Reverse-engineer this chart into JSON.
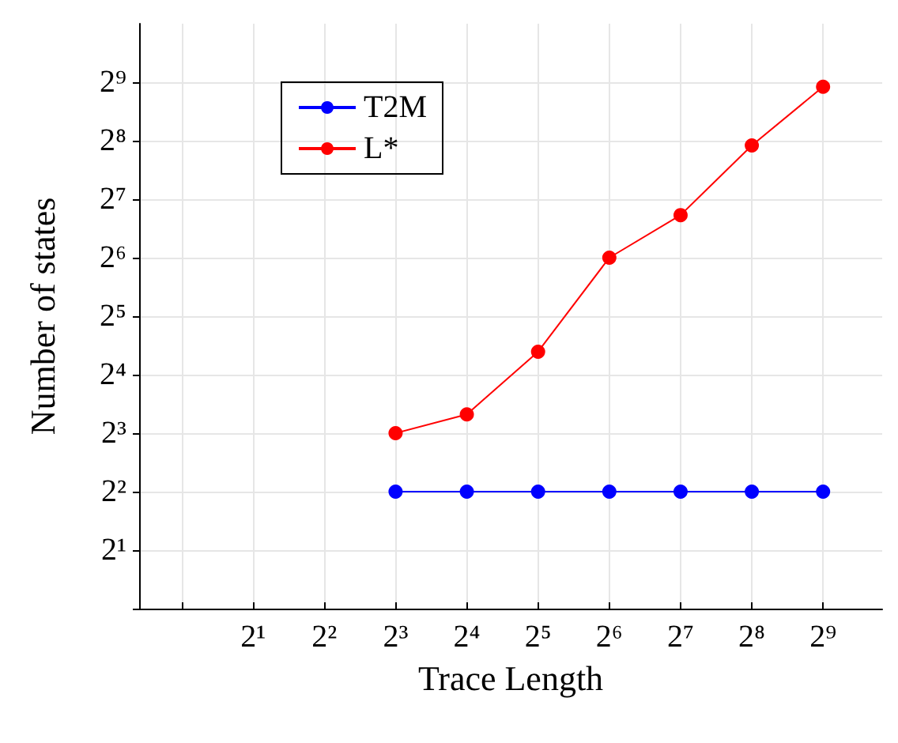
{
  "chart_data": {
    "type": "line",
    "xlabel": "Trace Length",
    "ylabel": "Number of states",
    "log": "xy",
    "grid": true,
    "legend": "top left",
    "marker": "circle",
    "line_style": "solid",
    "xlim": [
      0.66,
      910
    ],
    "ylim": [
      1,
      1024
    ],
    "xticks": [
      {
        "value": 1,
        "label": null
      },
      {
        "value": 2,
        "label": "2¹"
      },
      {
        "value": 4,
        "label": "2²"
      },
      {
        "value": 8,
        "label": "2³"
      },
      {
        "value": 16,
        "label": "2⁴"
      },
      {
        "value": 32,
        "label": "2⁵"
      },
      {
        "value": 64,
        "label": "2⁶"
      },
      {
        "value": 128,
        "label": "2⁷"
      },
      {
        "value": 256,
        "label": "2⁸"
      },
      {
        "value": 512,
        "label": "2⁹"
      }
    ],
    "yticks": [
      {
        "value": 1,
        "label": null
      },
      {
        "value": 2,
        "label": "2¹"
      },
      {
        "value": 4,
        "label": "2²"
      },
      {
        "value": 8,
        "label": "2³"
      },
      {
        "value": 16,
        "label": "2⁴"
      },
      {
        "value": 32,
        "label": "2⁵"
      },
      {
        "value": 64,
        "label": "2⁶"
      },
      {
        "value": 128,
        "label": "2⁷"
      },
      {
        "value": 256,
        "label": "2⁸"
      },
      {
        "value": 512,
        "label": "2⁹"
      }
    ],
    "x": [
      8,
      16,
      32,
      64,
      128,
      256,
      512
    ],
    "series": [
      {
        "name": "T2M",
        "color": "#0000ff",
        "values": [
          4,
          4,
          4,
          4,
          4,
          4,
          4
        ]
      },
      {
        "name": "L*",
        "color": "#ff0000",
        "values": [
          8,
          10,
          21,
          64,
          106,
          242,
          485
        ]
      }
    ]
  }
}
